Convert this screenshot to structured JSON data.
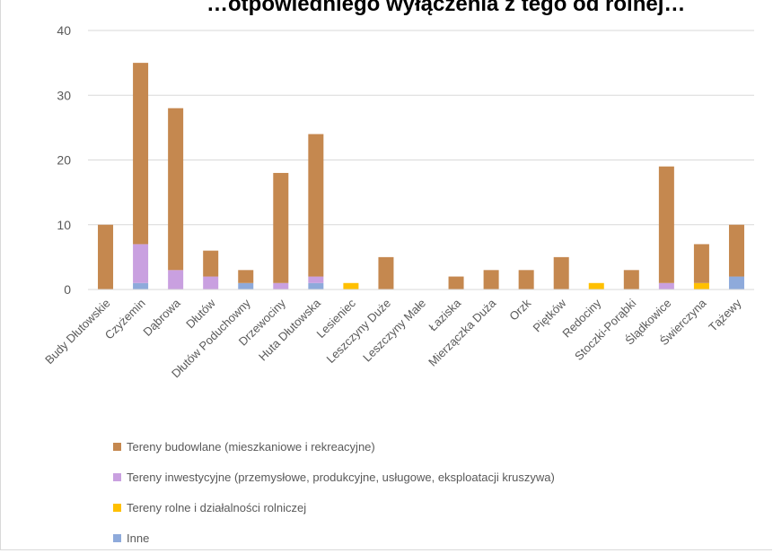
{
  "title": "…otpowiedniego wyłączenia z tego od rolnej…",
  "chart_data": {
    "type": "bar",
    "stacked": true,
    "title": "",
    "xlabel": "",
    "ylabel": "",
    "ylim": [
      0,
      40
    ],
    "yticks": [
      "0",
      "10",
      "20",
      "30",
      "40"
    ],
    "grid": true,
    "legend_position": "bottom",
    "categories": [
      "Budy Dłutowskie",
      "Czyżemin",
      "Dąbrowa",
      "Dłutów",
      "Dłutów Poduchowny",
      "Drzewociny",
      "Huta Dłutowska",
      "Lesieniec",
      "Leszczyny Duże",
      "Leszczyny Małe",
      "Łaziska",
      "Mierzączka Duża",
      "Orzk",
      "Piętków",
      "Redociny",
      "Stoczki-Porąbki",
      "Ślądkowice",
      "Świerczyna",
      "Tążewy"
    ],
    "series": [
      {
        "name": "Inne",
        "color": "#8eaadb",
        "values": [
          0,
          1,
          0,
          0,
          1,
          0,
          1,
          0,
          0,
          0,
          0,
          0,
          0,
          0,
          0,
          0,
          0,
          0,
          2
        ]
      },
      {
        "name": "Tereny inwestycyjne (przemysłowe, produkcyjne, usługowe, eksploatacji kruszywa)",
        "color": "#c9a0e0",
        "values": [
          0,
          6,
          3,
          2,
          0,
          1,
          1,
          0,
          0,
          0,
          0,
          0,
          0,
          0,
          0,
          0,
          1,
          0,
          0
        ]
      },
      {
        "name": "Tereny rolne i działalności rolniczej",
        "color": "#ffc000",
        "values": [
          0,
          0,
          0,
          0,
          0,
          0,
          0,
          1,
          0,
          0,
          0,
          0,
          0,
          0,
          1,
          0,
          0,
          1,
          0
        ]
      },
      {
        "name": "Tereny budowlane (mieszkaniowe i rekreacyjne)",
        "color": "#c5884f",
        "values": [
          10,
          28,
          25,
          4,
          2,
          17,
          22,
          0,
          5,
          0,
          2,
          3,
          3,
          5,
          0,
          3,
          18,
          6,
          8
        ]
      }
    ],
    "legend_order": [
      3,
      1,
      2,
      0
    ]
  }
}
